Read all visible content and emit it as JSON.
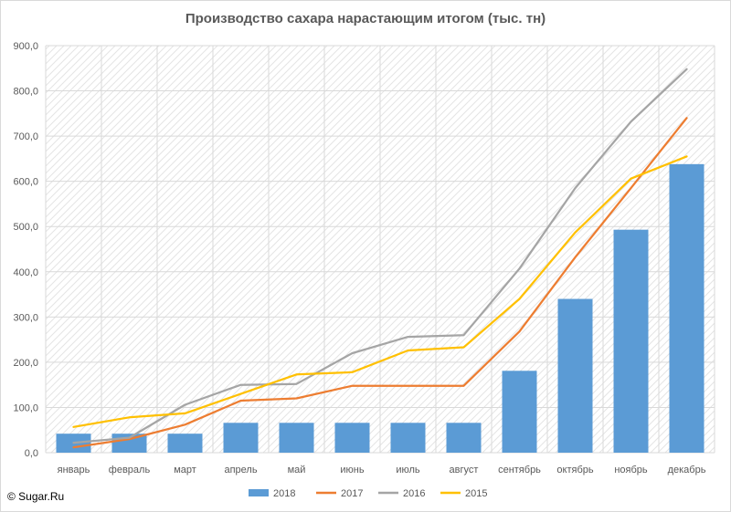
{
  "colors": {
    "grid": "#d9d9d9",
    "hatch": "#e4e4e4",
    "axis_text": "#595959",
    "s2018": "#5b9bd5",
    "s2017": "#ed7d31",
    "s2016": "#a5a5a5",
    "s2015": "#ffc000"
  },
  "credit": "© Sugar.Ru",
  "chart_data": {
    "type": "bar",
    "title": "Производство сахара нарастающим итогом (тыс. тн)",
    "categories": [
      "январь",
      "февраль",
      "март",
      "апрель",
      "май",
      "июнь",
      "июль",
      "август",
      "сентябрь",
      "октябрь",
      "ноябрь",
      "декабрь"
    ],
    "ylim": [
      0,
      900
    ],
    "yticks": [
      "0,0",
      "100,0",
      "200,0",
      "300,0",
      "400,0",
      "500,0",
      "600,0",
      "700,0",
      "800,0",
      "900,0"
    ],
    "grid": true,
    "legend_position": "bottom",
    "series": [
      {
        "name": "2018",
        "type": "bar",
        "color": "#5b9bd5",
        "values": [
          42,
          42,
          42,
          66,
          66,
          66,
          66,
          66,
          181,
          340,
          493,
          638
        ]
      },
      {
        "name": "2017",
        "type": "line",
        "color": "#ed7d31",
        "values": [
          12,
          30,
          62,
          115,
          120,
          148,
          148,
          148,
          268,
          432,
          585,
          740
        ]
      },
      {
        "name": "2016",
        "type": "line",
        "color": "#a5a5a5",
        "values": [
          22,
          33,
          106,
          150,
          152,
          220,
          256,
          260,
          407,
          585,
          732,
          848
        ]
      },
      {
        "name": "2015",
        "type": "line",
        "color": "#ffc000",
        "values": [
          57,
          78,
          87,
          130,
          173,
          178,
          226,
          233,
          340,
          487,
          606,
          655
        ]
      }
    ]
  }
}
